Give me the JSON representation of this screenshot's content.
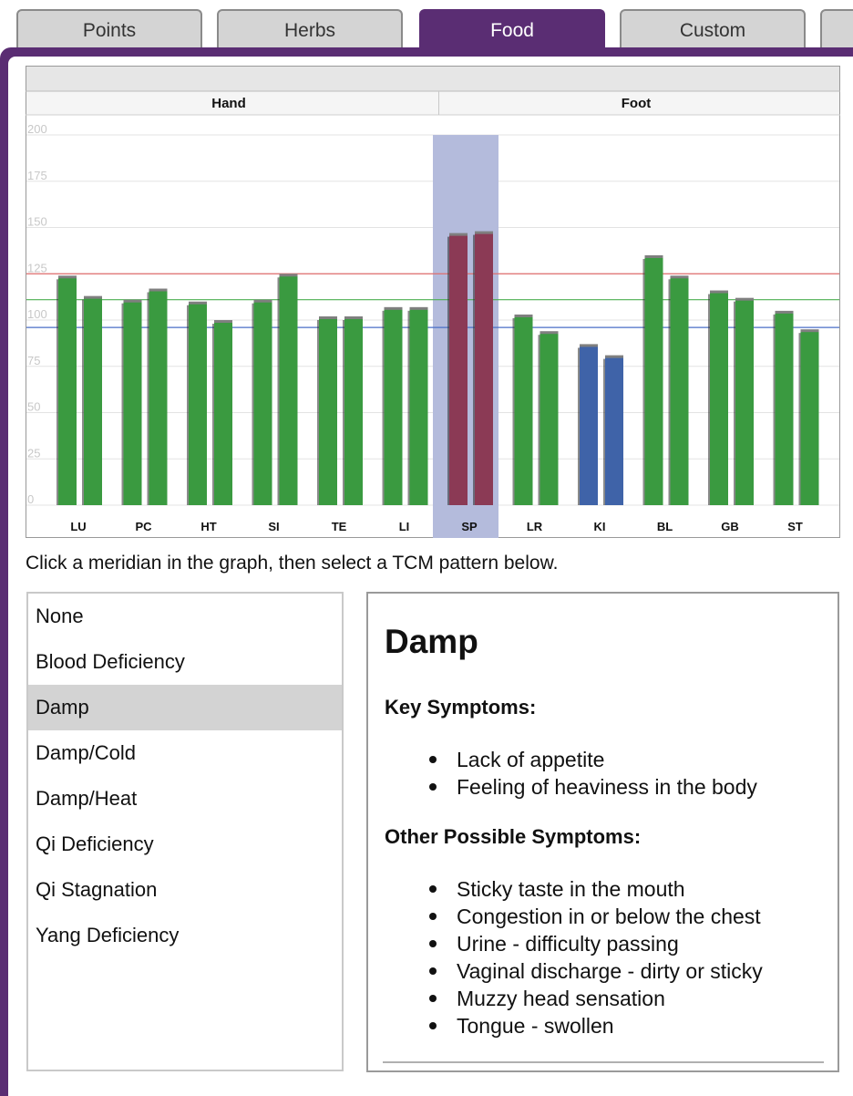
{
  "tabs": [
    {
      "label": "Points",
      "active": false
    },
    {
      "label": "Herbs",
      "active": false
    },
    {
      "label": "Food",
      "active": true
    },
    {
      "label": "Custom",
      "active": false
    },
    {
      "label": "",
      "active": false
    }
  ],
  "colors": {
    "accent": "#5a2d73",
    "bar_green": "#3a9a40",
    "bar_blue": "#3f63a8",
    "bar_red": "#8b3a55",
    "highlight": "#b4bbdc",
    "upper_line": "#e06c6c",
    "mid_line": "#4caf50",
    "lower_line": "#4a6fc7"
  },
  "chart_data": {
    "type": "bar",
    "groups": [
      {
        "label": "Hand",
        "categories": [
          "LU",
          "PC",
          "HT",
          "SI",
          "TE",
          "LI"
        ]
      },
      {
        "label": "Foot",
        "categories": [
          "SP",
          "LR",
          "KI",
          "BL",
          "GB",
          "ST"
        ]
      }
    ],
    "categories": [
      "LU",
      "PC",
      "HT",
      "SI",
      "TE",
      "LI",
      "SP",
      "LR",
      "KI",
      "BL",
      "GB",
      "ST"
    ],
    "series": [
      {
        "values": [
          123,
          110,
          109,
          110,
          101,
          106,
          146,
          102,
          86,
          134,
          115,
          104
        ]
      },
      {
        "values": [
          112,
          116,
          99,
          124,
          101,
          106,
          147,
          93,
          80,
          123,
          111,
          94
        ]
      }
    ],
    "bar_colors": [
      "green",
      "green",
      "green",
      "green",
      "green",
      "green",
      "red",
      "green",
      "blue",
      "green",
      "green",
      "green"
    ],
    "selected_category": "SP",
    "y_ticks": [
      0,
      25,
      50,
      75,
      100,
      125,
      150,
      175,
      200
    ],
    "ylim": [
      0,
      200
    ],
    "reference_lines": [
      {
        "value": 125,
        "color": "red"
      },
      {
        "value": 111,
        "color": "green"
      },
      {
        "value": 96,
        "color": "blue"
      }
    ],
    "grid": true
  },
  "instruction": "Click a meridian in the graph, then select a TCM pattern below.",
  "patterns": {
    "items": [
      "None",
      "Blood Deficiency",
      "Damp",
      "Damp/Cold",
      "Damp/Heat",
      "Qi Deficiency",
      "Qi Stagnation",
      "Yang Deficiency"
    ],
    "selected": "Damp"
  },
  "detail": {
    "title": "Damp",
    "key_heading": "Key Symptoms:",
    "key_symptoms": [
      "Lack of appetite",
      "Feeling of heaviness in the body"
    ],
    "other_heading": "Other Possible Symptoms:",
    "other_symptoms": [
      "Sticky taste in the mouth",
      "Congestion in or below the chest",
      "Urine - difficulty passing",
      "Vaginal discharge - dirty or sticky",
      "Muzzy head sensation",
      "Tongue - swollen"
    ]
  }
}
